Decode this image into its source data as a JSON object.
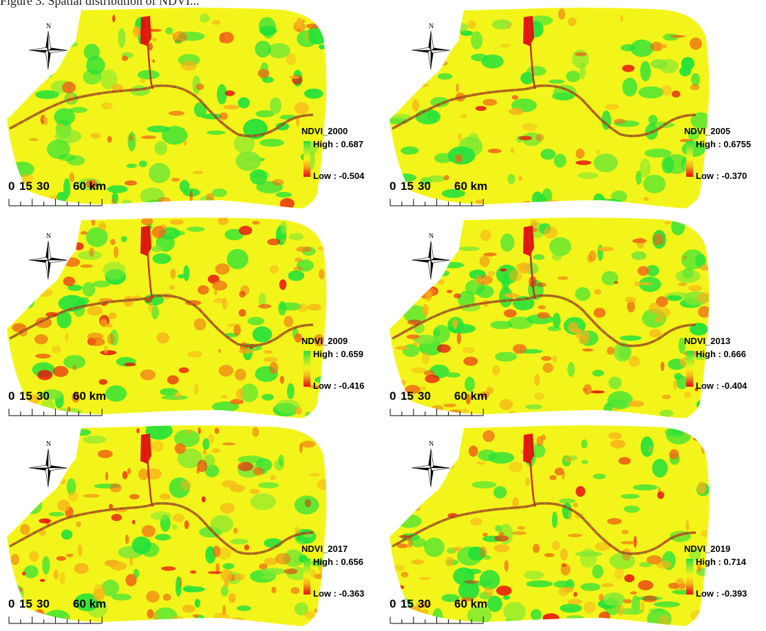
{
  "figure": {
    "header_fragment": "Figure 3. Spatial distribution of NDVI..."
  },
  "ramp_colors": {
    "high": "#23e13a",
    "mid": "#f3f51a",
    "low": "#e8140e"
  },
  "north_arrow": {
    "letter": "N",
    "icon": "north-arrow-icon"
  },
  "scale": {
    "labels": [
      "0",
      "15",
      "30",
      "60 km"
    ]
  },
  "panels": [
    {
      "legend_title": "NDVI_2000",
      "high": "High : 0.687",
      "low": "Low : -0.504"
    },
    {
      "legend_title": "NDVI_2005",
      "high": "High : 0.6755",
      "low": "Low : -0.370"
    },
    {
      "legend_title": "NDVI_2009",
      "high": "High : 0.659",
      "low": "Low : -0.416"
    },
    {
      "legend_title": "NDVI_2013",
      "high": "High : 0.666",
      "low": "Low : -0.404"
    },
    {
      "legend_title": "NDVI_2017",
      "high": "High : 0.656",
      "low": "Low : -0.363"
    },
    {
      "legend_title": "NDVI_2019",
      "high": "High : 0.714",
      "low": "Low : -0.393"
    }
  ]
}
